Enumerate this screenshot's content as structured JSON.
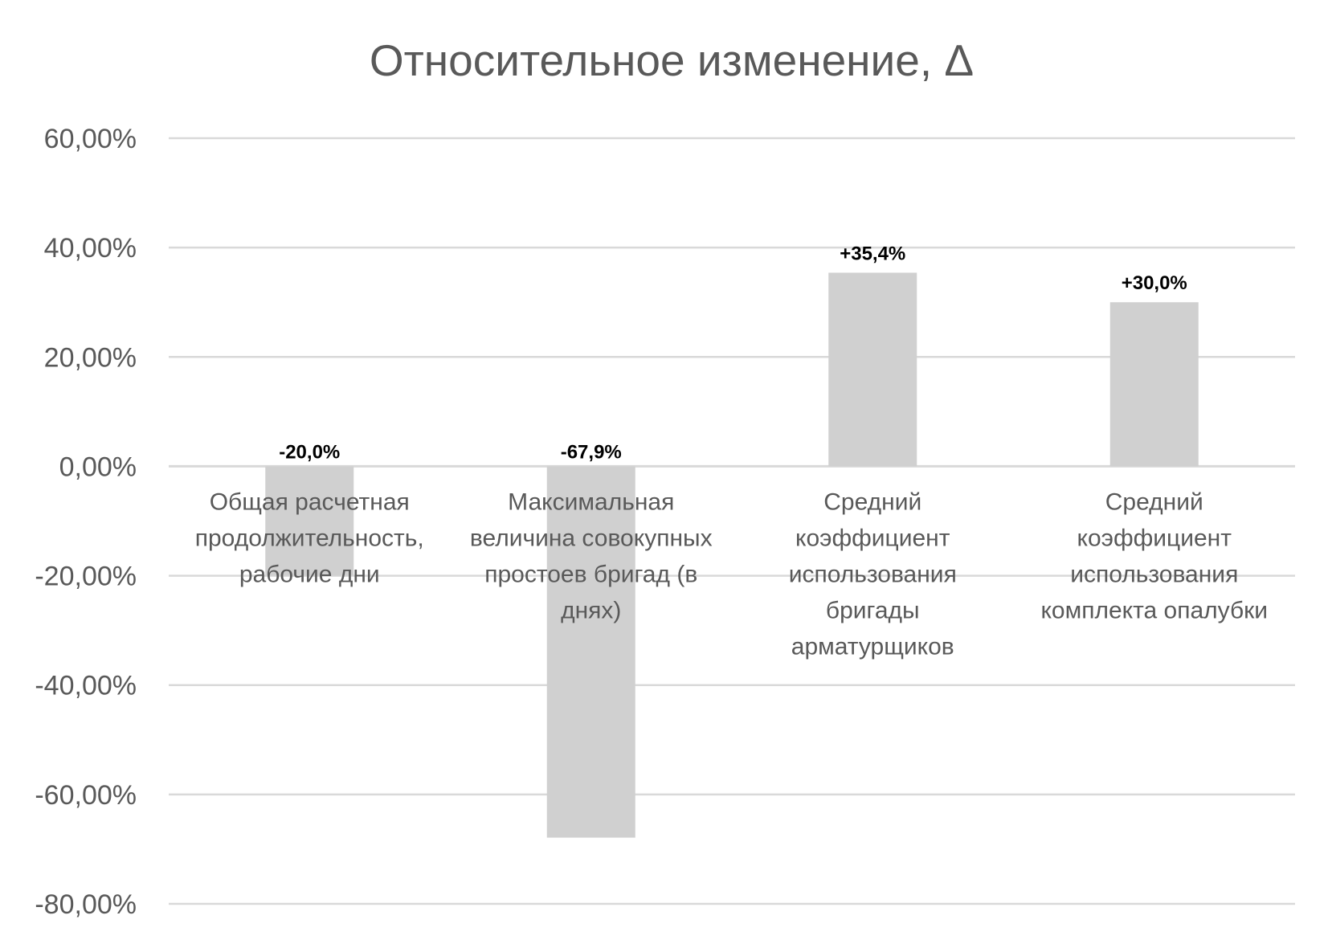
{
  "chart_data": {
    "type": "bar",
    "title": "Относительное изменение, Δ",
    "categories": [
      [
        "Общая расчетная",
        "продолжительность,",
        "рабочие дни"
      ],
      [
        "Максимальная",
        "величина совокупных",
        "простоев бригад (в",
        "днях)"
      ],
      [
        "Средний",
        "коэффициент",
        "использования",
        "бригады",
        "арматурщиков"
      ],
      [
        "Средний",
        "коэффициент",
        "использования",
        "комплекта опалубки"
      ]
    ],
    "values": [
      -20.0,
      -67.9,
      35.4,
      30.0
    ],
    "data_labels": [
      "-20,0%",
      "-67,9%",
      "+35,4%",
      "+30,0%"
    ],
    "ylim": [
      -80,
      60
    ],
    "yticks": [
      60,
      40,
      20,
      0,
      -20,
      -40,
      -60,
      -80
    ],
    "ytick_labels": [
      "60,00%",
      "40,00%",
      "20,00%",
      "0,00%",
      "-20,00%",
      "-40,00%",
      "-60,00%",
      "-80,00%"
    ],
    "grid": true,
    "legend": "none",
    "bar_color": "#d0d0d0",
    "grid_color": "#d9d9d9",
    "text_color": "#595959"
  }
}
